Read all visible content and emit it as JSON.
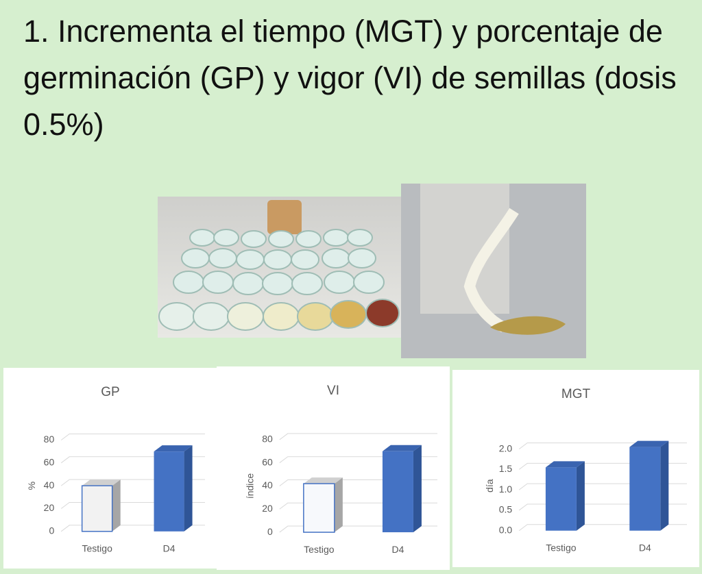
{
  "title": "1. Incrementa el tiempo (MGT) y porcentaje de germinación (GP) y vigor (VI) de semillas (dosis 0.5%)",
  "chart_data": [
    {
      "type": "bar3d",
      "title": "GP",
      "y_label": "%",
      "categories": [
        "Testigo",
        "D4"
      ],
      "values": [
        40,
        70
      ],
      "colors": [
        "#f2f2f2",
        "#4472c4"
      ],
      "ylim": [
        0,
        80
      ],
      "yticks": [
        0,
        20,
        40,
        60,
        80
      ],
      "grid": true
    },
    {
      "type": "bar3d",
      "title": "VI",
      "y_label": "índice",
      "categories": [
        "Testigo",
        "D4"
      ],
      "values": [
        42,
        70
      ],
      "colors": [
        "#f7f9fc",
        "#4472c4"
      ],
      "ylim": [
        0,
        80
      ],
      "yticks": [
        0,
        20,
        40,
        60,
        80
      ],
      "grid": true
    },
    {
      "type": "bar3d",
      "title": "MGT",
      "y_label": "día",
      "categories": [
        "Testigo",
        "D4"
      ],
      "values": [
        1.55,
        2.05
      ],
      "colors": [
        "#4472c4",
        "#4472c4"
      ],
      "ylim": [
        0,
        2.2
      ],
      "yticks": [
        {
          "value": 0,
          "label": "0.0"
        },
        0.5,
        {
          "value": 1,
          "label": "1.0"
        },
        1.5,
        {
          "value": 2,
          "label": "2.0"
        }
      ],
      "grid": true
    }
  ]
}
